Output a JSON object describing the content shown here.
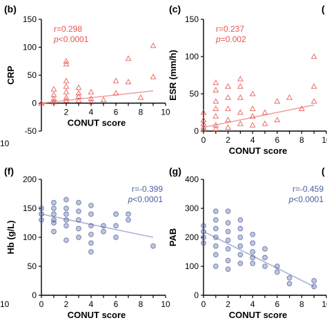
{
  "chart_data": [
    {
      "panel": "(b)",
      "type": "scatter",
      "marker": "triangle",
      "color": "#e8524f",
      "fit_color": "#f2a3a1",
      "xlabel": "CONUT score",
      "ylabel": "CRP",
      "xlim": [
        0,
        10
      ],
      "ylim": [
        -50,
        150
      ],
      "xticks": [
        "2",
        "4",
        "6",
        "8",
        "10"
      ],
      "yticks": [
        "-50",
        "0",
        "50",
        "100",
        "150"
      ],
      "stats": {
        "r": "r=0.298",
        "p": "p<0.0001"
      },
      "fit": [
        [
          0,
          0
        ],
        [
          9,
          22
        ]
      ],
      "points": [
        [
          0,
          0
        ],
        [
          0,
          0
        ],
        [
          1,
          2
        ],
        [
          1,
          8
        ],
        [
          1,
          15
        ],
        [
          1,
          25
        ],
        [
          1,
          3
        ],
        [
          2,
          75
        ],
        [
          2,
          70
        ],
        [
          2,
          40
        ],
        [
          2,
          30
        ],
        [
          2,
          20
        ],
        [
          2,
          10
        ],
        [
          2,
          5
        ],
        [
          3,
          28
        ],
        [
          3,
          12
        ],
        [
          3,
          5
        ],
        [
          3,
          18
        ],
        [
          4,
          20
        ],
        [
          4,
          8
        ],
        [
          4,
          2
        ],
        [
          5,
          6
        ],
        [
          6,
          18
        ],
        [
          6,
          40
        ],
        [
          7,
          38
        ],
        [
          7,
          80
        ],
        [
          8,
          10
        ],
        [
          9,
          103
        ],
        [
          9,
          47
        ]
      ]
    },
    {
      "panel": "(c)",
      "type": "scatter",
      "marker": "triangle",
      "color": "#e8524f",
      "fit_color": "#f2a3a1",
      "xlabel": "CONUT score",
      "ylabel": "ESR (mm/h)",
      "xlim": [
        0,
        10
      ],
      "ylim": [
        0,
        150
      ],
      "xticks": [
        "0",
        "2",
        "4",
        "6",
        "8",
        "10"
      ],
      "yticks": [
        "0",
        "50",
        "100",
        "150"
      ],
      "stats": {
        "r": "r=0.237",
        "p": "p=0.002"
      },
      "fit": [
        [
          0,
          5
        ],
        [
          9,
          35
        ]
      ],
      "points": [
        [
          0,
          2
        ],
        [
          0,
          5
        ],
        [
          0,
          10
        ],
        [
          0,
          15
        ],
        [
          0,
          25
        ],
        [
          1,
          3
        ],
        [
          1,
          8
        ],
        [
          1,
          20
        ],
        [
          1,
          30
        ],
        [
          1,
          40
        ],
        [
          1,
          55
        ],
        [
          1,
          65
        ],
        [
          2,
          5
        ],
        [
          2,
          15
        ],
        [
          2,
          30
        ],
        [
          2,
          45
        ],
        [
          2,
          60
        ],
        [
          3,
          10
        ],
        [
          3,
          25
        ],
        [
          3,
          45
        ],
        [
          3,
          60
        ],
        [
          3,
          70
        ],
        [
          4,
          8
        ],
        [
          4,
          20
        ],
        [
          4,
          30
        ],
        [
          4,
          50
        ],
        [
          5,
          10
        ],
        [
          5,
          25
        ],
        [
          6,
          15
        ],
        [
          6,
          40
        ],
        [
          7,
          45
        ],
        [
          8,
          30
        ],
        [
          9,
          100
        ],
        [
          9,
          60
        ],
        [
          9,
          40
        ]
      ]
    },
    {
      "panel": "(f)",
      "type": "scatter",
      "marker": "circle",
      "color": "#4a5e9e",
      "fit_color": "#a9b4d6",
      "xlabel": "CONUT score",
      "ylabel": "Hb (g/L)",
      "xlim": [
        0,
        10
      ],
      "ylim": [
        0,
        200
      ],
      "xticks": [
        "0",
        "2",
        "4",
        "6",
        "8",
        "10"
      ],
      "yticks": [
        "0",
        "50",
        "100",
        "150",
        "200"
      ],
      "stats": {
        "r": "r=-0.399",
        "p": "p<0.0001"
      },
      "fit": [
        [
          0,
          140
        ],
        [
          9,
          100
        ]
      ],
      "points": [
        [
          0,
          150
        ],
        [
          0,
          140
        ],
        [
          0,
          130
        ],
        [
          1,
          160
        ],
        [
          1,
          150
        ],
        [
          1,
          140
        ],
        [
          1,
          130
        ],
        [
          1,
          125
        ],
        [
          1,
          110
        ],
        [
          2,
          165
        ],
        [
          2,
          150
        ],
        [
          2,
          140
        ],
        [
          2,
          130
        ],
        [
          2,
          120
        ],
        [
          2,
          95
        ],
        [
          3,
          160
        ],
        [
          3,
          145
        ],
        [
          3,
          130
        ],
        [
          3,
          115
        ],
        [
          3,
          100
        ],
        [
          4,
          155
        ],
        [
          4,
          140
        ],
        [
          4,
          120
        ],
        [
          4,
          105
        ],
        [
          4,
          90
        ],
        [
          4,
          75
        ],
        [
          5,
          120
        ],
        [
          5,
          110
        ],
        [
          6,
          140
        ],
        [
          6,
          120
        ],
        [
          6,
          100
        ],
        [
          7,
          140
        ],
        [
          7,
          130
        ],
        [
          9,
          85
        ]
      ]
    },
    {
      "panel": "(g)",
      "type": "scatter",
      "marker": "circle",
      "color": "#4a5e9e",
      "fit_color": "#a9b4d6",
      "xlabel": "CONUT score",
      "ylabel": "PAB",
      "xlim": [
        0,
        10
      ],
      "ylim": [
        0,
        400
      ],
      "xticks": [
        "0",
        "2",
        "4",
        "6",
        "8",
        "10"
      ],
      "yticks": [
        "0",
        "100",
        "200",
        "300",
        "400"
      ],
      "stats": {
        "r": "r=-0.459",
        "p": "p<0.0001"
      },
      "fit": [
        [
          0,
          220
        ],
        [
          9,
          30
        ]
      ],
      "points": [
        [
          0,
          240
        ],
        [
          0,
          220
        ],
        [
          0,
          200
        ],
        [
          0,
          180
        ],
        [
          1,
          290
        ],
        [
          1,
          260
        ],
        [
          1,
          230
        ],
        [
          1,
          200
        ],
        [
          1,
          170
        ],
        [
          1,
          140
        ],
        [
          1,
          100
        ],
        [
          2,
          290
        ],
        [
          2,
          250
        ],
        [
          2,
          220
        ],
        [
          2,
          190
        ],
        [
          2,
          160
        ],
        [
          2,
          120
        ],
        [
          2,
          90
        ],
        [
          3,
          260
        ],
        [
          3,
          230
        ],
        [
          3,
          200
        ],
        [
          3,
          170
        ],
        [
          3,
          140
        ],
        [
          3,
          110
        ],
        [
          4,
          210
        ],
        [
          4,
          180
        ],
        [
          4,
          150
        ],
        [
          4,
          130
        ],
        [
          4,
          110
        ],
        [
          5,
          160
        ],
        [
          5,
          130
        ],
        [
          5,
          100
        ],
        [
          6,
          100
        ],
        [
          6,
          80
        ],
        [
          7,
          60
        ],
        [
          7,
          40
        ],
        [
          9,
          50
        ],
        [
          9,
          30
        ]
      ]
    }
  ],
  "edge_fragments": {
    "right_top": "(",
    "right_bottom": "(",
    "left_top_tick": "10",
    "left_bottom_tick": "10"
  }
}
